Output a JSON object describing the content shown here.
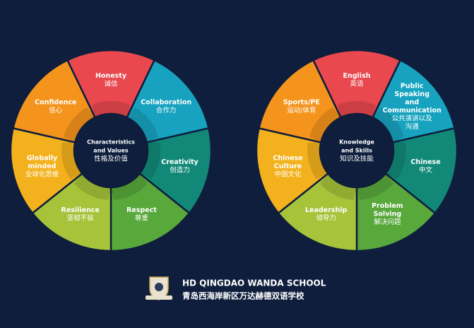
{
  "wheels": [
    {
      "center": {
        "en": [
          "Characteristics",
          "and Values"
        ],
        "zh": [
          "性格及价值"
        ]
      },
      "segments": [
        {
          "en": [
            "Honesty"
          ],
          "zh": [
            "诚信"
          ]
        },
        {
          "en": [
            "Collaboration"
          ],
          "zh": [
            "合作力"
          ]
        },
        {
          "en": [
            "Creativity"
          ],
          "zh": [
            "创造力"
          ]
        },
        {
          "en": [
            "Respect"
          ],
          "zh": [
            "尊重"
          ]
        },
        {
          "en": [
            "Resilience"
          ],
          "zh": [
            "坚韧不拔"
          ]
        },
        {
          "en": [
            "Globally",
            "minded"
          ],
          "zh": [
            "全球化思维"
          ]
        },
        {
          "en": [
            "Confidence"
          ],
          "zh": [
            "信心"
          ]
        }
      ]
    },
    {
      "center": {
        "en": [
          "Knowledge",
          "and Skills"
        ],
        "zh": [
          "知识及技能"
        ]
      },
      "segments": [
        {
          "en": [
            "English"
          ],
          "zh": [
            "英语"
          ]
        },
        {
          "en": [
            "Public",
            "Speaking",
            "and",
            "Communication"
          ],
          "zh": [
            "公共演讲以及",
            "沟通"
          ]
        },
        {
          "en": [
            "Chinese"
          ],
          "zh": [
            "中文"
          ]
        },
        {
          "en": [
            "Problem",
            "Solving"
          ],
          "zh": [
            "解决问题"
          ]
        },
        {
          "en": [
            "Leadership"
          ],
          "zh": [
            "领导力"
          ]
        },
        {
          "en": [
            "Chinese",
            "Culture"
          ],
          "zh": [
            "中国文化"
          ]
        },
        {
          "en": [
            "Sports/PE"
          ],
          "zh": [
            "运动/体育"
          ]
        }
      ]
    }
  ],
  "footer": {
    "title": "HD QINGDAO WANDA SCHOOL",
    "subtitle": "青岛西海岸新区万达赫德双语学校"
  }
}
